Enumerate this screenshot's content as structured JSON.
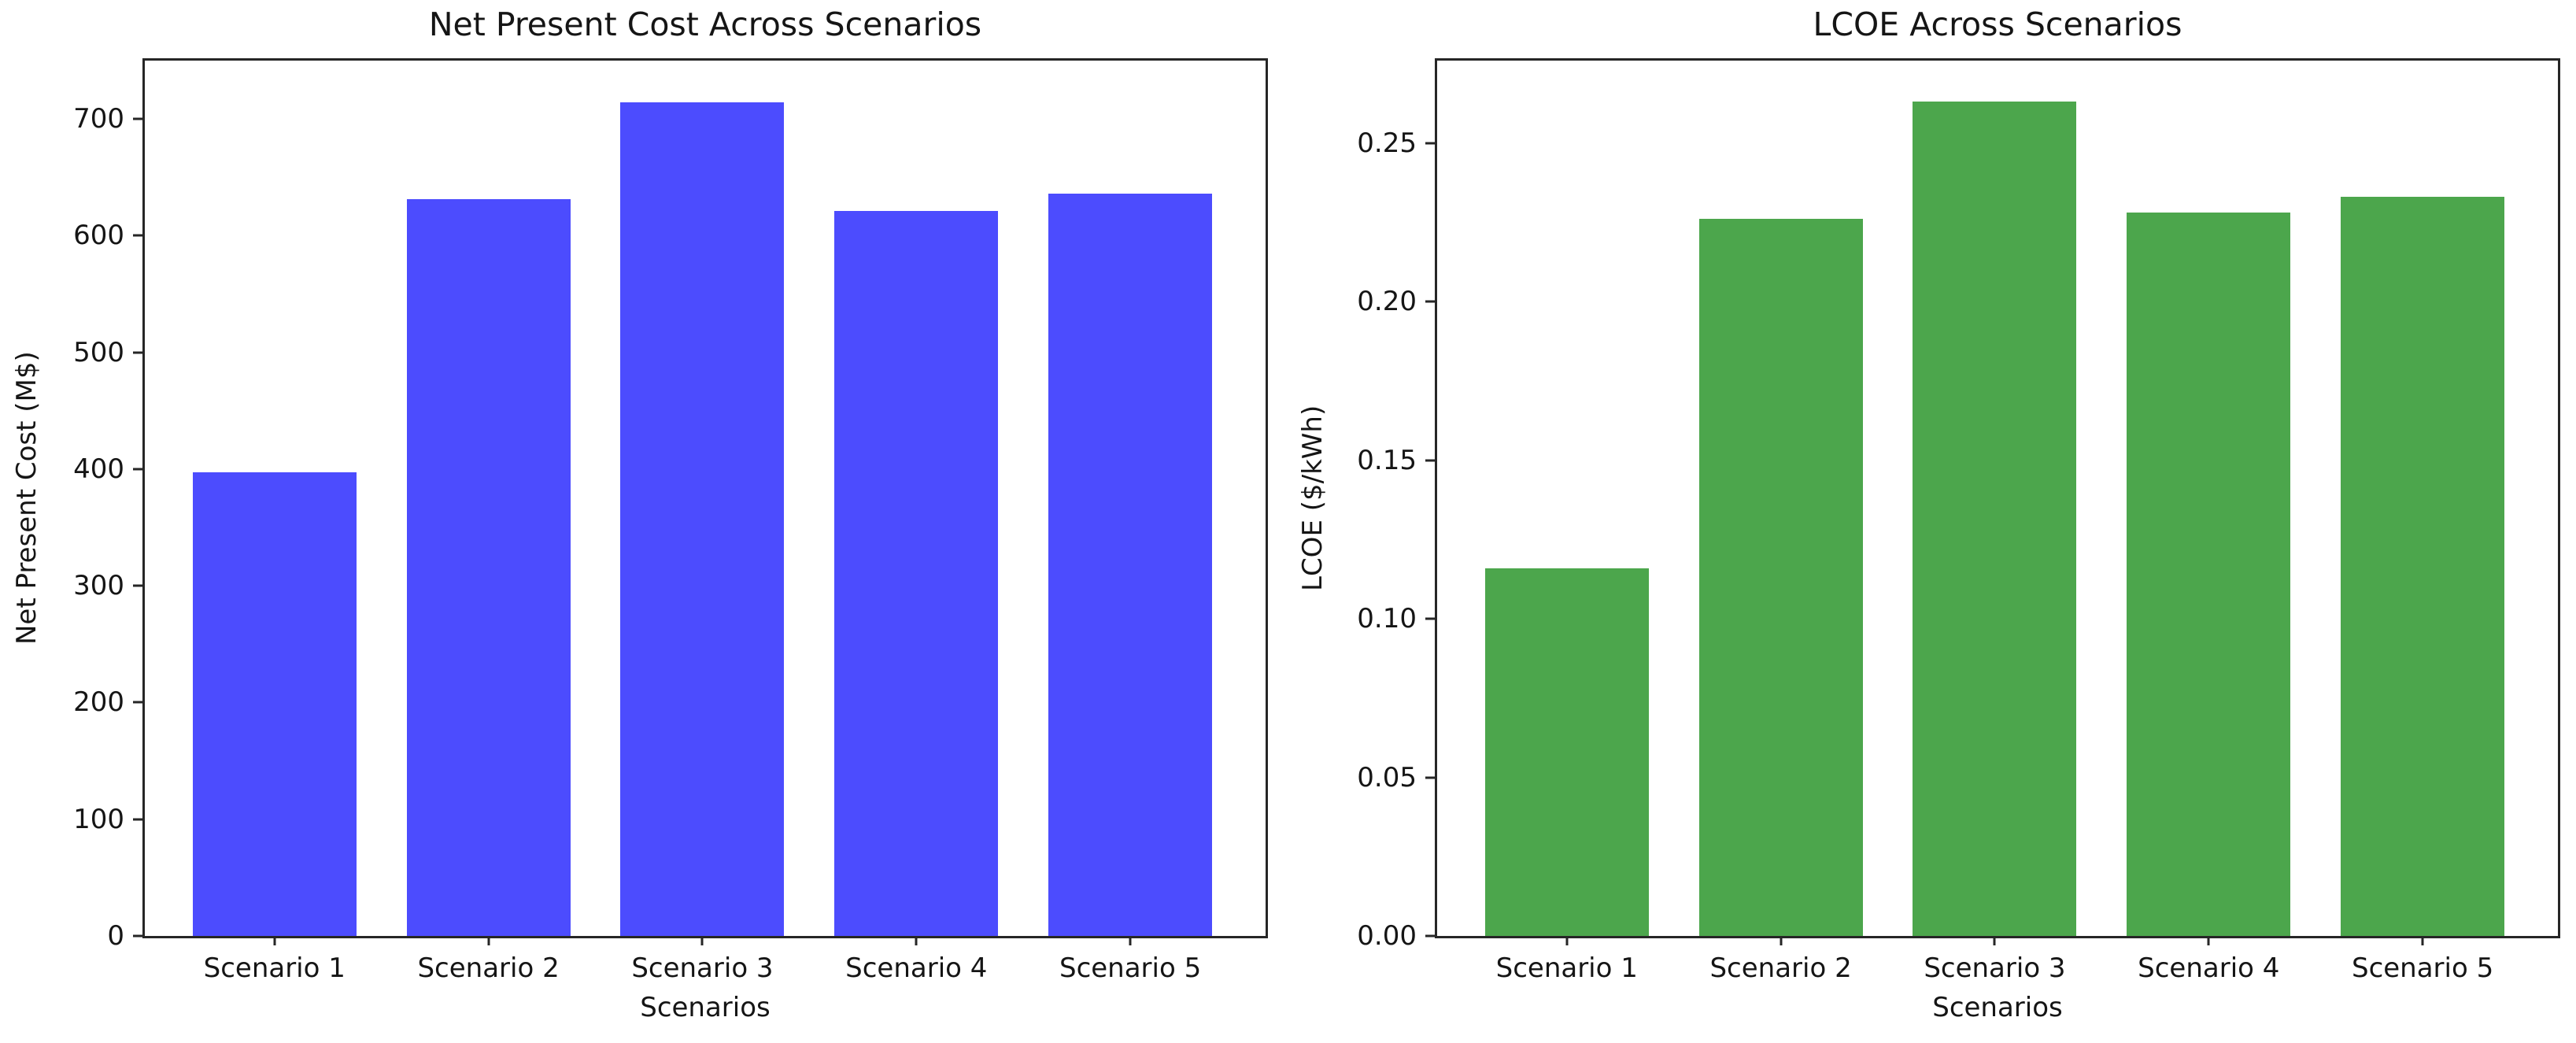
{
  "figure": {
    "background_color": "#ffffff",
    "text_color": "#151515",
    "axis_color": "#262626"
  },
  "chart_data": [
    {
      "type": "bar",
      "title": "Net Present Cost Across Scenarios",
      "xlabel": "Scenarios",
      "ylabel": "Net Present Cost (M$)",
      "categories": [
        "Scenario 1",
        "Scenario 2",
        "Scenario 3",
        "Scenario 4",
        "Scenario 5"
      ],
      "values": [
        397,
        631,
        714,
        621,
        636
      ],
      "bar_color": "#4c4cfe",
      "ylim": [
        0,
        750
      ],
      "ytick_values": [
        0,
        100,
        200,
        300,
        400,
        500,
        600,
        700
      ],
      "ytick_labels": [
        "0",
        "100",
        "200",
        "300",
        "400",
        "500",
        "600",
        "700"
      ],
      "grid": false,
      "legend": null
    },
    {
      "type": "bar",
      "title": "LCOE Across Scenarios",
      "xlabel": "Scenarios",
      "ylabel": "LCOE ($/kWh)",
      "categories": [
        "Scenario 1",
        "Scenario 2",
        "Scenario 3",
        "Scenario 4",
        "Scenario 5"
      ],
      "values": [
        0.116,
        0.226,
        0.263,
        0.228,
        0.233
      ],
      "bar_color": "#4ca64c",
      "ylim": [
        0,
        0.276
      ],
      "ytick_values": [
        0,
        0.05,
        0.1,
        0.15,
        0.2,
        0.25
      ],
      "ytick_labels": [
        "0.00",
        "0.05",
        "0.10",
        "0.15",
        "0.20",
        "0.25"
      ],
      "grid": false,
      "legend": null
    }
  ]
}
